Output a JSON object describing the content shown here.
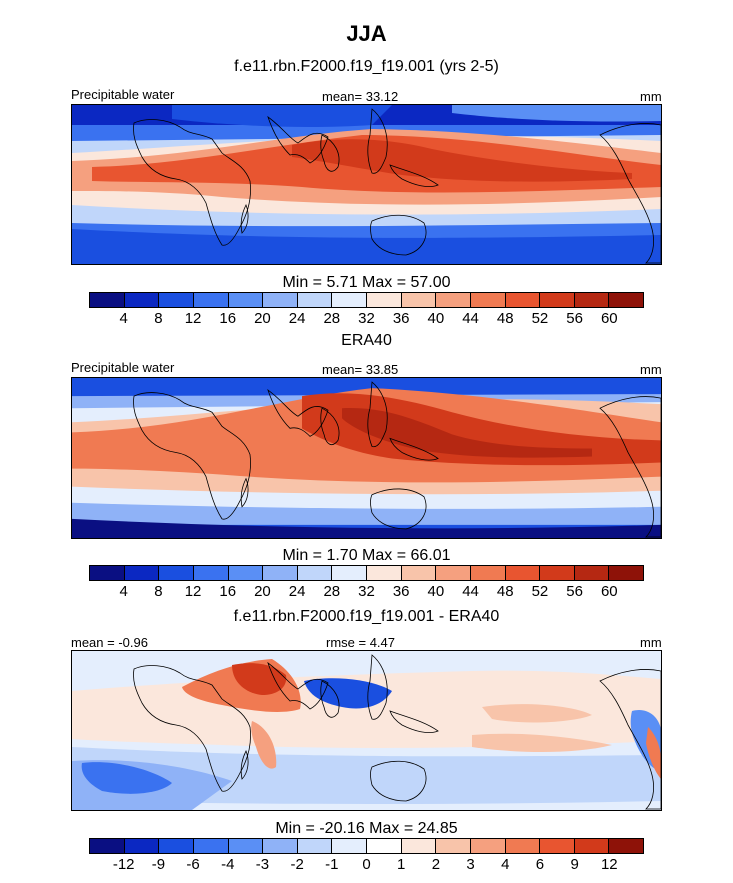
{
  "figure": {
    "title": "JJA",
    "colors": {
      "seq": [
        "#0a0f82",
        "#0b28c2",
        "#1a4fe0",
        "#3a72f0",
        "#5a8ff5",
        "#8fb2f7",
        "#c0d6fa",
        "#e4eefd",
        "#fbe7dc",
        "#f8c4aa",
        "#f5a07f",
        "#f07a52",
        "#e85530",
        "#d23a1b",
        "#b52812",
        "#8e1208"
      ],
      "diff": [
        "#0a0f82",
        "#0b28c2",
        "#1a4fe0",
        "#3a72f0",
        "#5a8ff5",
        "#8fb2f7",
        "#c0d6fa",
        "#e4eefd",
        "#ffffff",
        "#fbe7dc",
        "#f8c4aa",
        "#f5a07f",
        "#f07a52",
        "#e85530",
        "#d23a1b",
        "#8e1208"
      ]
    },
    "panels": [
      {
        "title": "f.e11.rbn.F2000.f19_f19.001 (yrs 2-5)",
        "left_label": "Precipitable water",
        "center_label": "mean=  33.12",
        "right_label": "mm",
        "minmax": "Min =   5.71 Max =  57.00",
        "colorbar_ticks": [
          "4",
          "8",
          "12",
          "16",
          "20",
          "24",
          "28",
          "32",
          "36",
          "40",
          "44",
          "48",
          "52",
          "56",
          "60"
        ],
        "variant": "model"
      },
      {
        "title": "ERA40",
        "left_label": "Precipitable water",
        "center_label": "mean=  33.85",
        "right_label": "mm",
        "minmax": "Min =   1.70 Max =  66.01",
        "colorbar_ticks": [
          "4",
          "8",
          "12",
          "16",
          "20",
          "24",
          "28",
          "32",
          "36",
          "40",
          "44",
          "48",
          "52",
          "56",
          "60"
        ],
        "variant": "obs"
      },
      {
        "title": "f.e11.rbn.F2000.f19_f19.001 - ERA40",
        "left_label": "mean =  -0.96",
        "center_label": "rmse =   4.47",
        "right_label": "mm",
        "minmax": "Min = -20.16 Max =  24.85",
        "colorbar_ticks": [
          "-12",
          "-9",
          "-6",
          "-4",
          "-3",
          "-2",
          "-1",
          "0",
          "1",
          "2",
          "3",
          "4",
          "6",
          "9",
          "12"
        ],
        "variant": "diff"
      }
    ]
  }
}
